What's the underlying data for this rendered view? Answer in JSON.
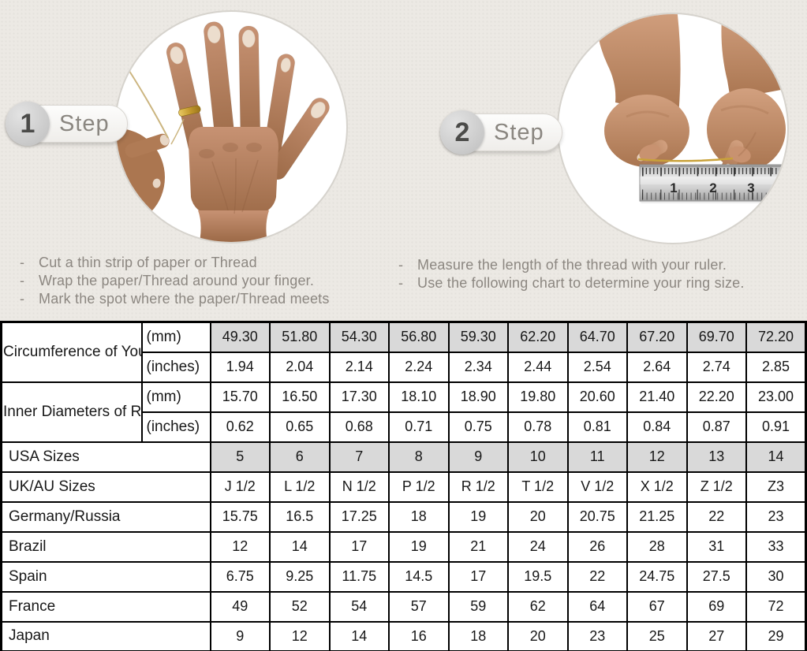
{
  "colors": {
    "background": "#ece9e4",
    "highlight_cell": "#d9d9d9",
    "gold_thread": "#c9a23a",
    "table_border": "#000000",
    "instruction_text": "#8c8781"
  },
  "steps": [
    {
      "number": "1",
      "label": "Step",
      "photo": "hand-with-ring-and-thread",
      "instructions": [
        "Cut a thin strip of paper or Thread",
        "Wrap the paper/Thread around your finger.",
        "Mark the spot where the paper/Thread meets"
      ]
    },
    {
      "number": "2",
      "label": "Step",
      "photo": "hands-measuring-thread-with-ruler",
      "ruler_numbers": [
        "1",
        "2",
        "3"
      ],
      "instructions": [
        "Measure the length of the thread with your ruler.",
        "Use the following chart to determine your ring size."
      ]
    }
  ],
  "table": {
    "row_groups": [
      {
        "label": "Circumference of Your Finger",
        "rows": [
          {
            "unit": "(mm)",
            "highlight": true,
            "values": [
              "49.30",
              "51.80",
              "54.30",
              "56.80",
              "59.30",
              "62.20",
              "64.70",
              "67.20",
              "69.70",
              "72.20"
            ]
          },
          {
            "unit": "(inches)",
            "highlight": false,
            "values": [
              "1.94",
              "2.04",
              "2.14",
              "2.24",
              "2.34",
              "2.44",
              "2.54",
              "2.64",
              "2.74",
              "2.85"
            ]
          }
        ]
      },
      {
        "label": "Inner Diameters of Rings",
        "rows": [
          {
            "unit": "(mm)",
            "highlight": false,
            "values": [
              "15.70",
              "16.50",
              "17.30",
              "18.10",
              "18.90",
              "19.80",
              "20.60",
              "21.40",
              "22.20",
              "23.00"
            ]
          },
          {
            "unit": "(inches)",
            "highlight": false,
            "values": [
              "0.62",
              "0.65",
              "0.68",
              "0.71",
              "0.75",
              "0.78",
              "0.81",
              "0.84",
              "0.87",
              "0.91"
            ]
          }
        ]
      }
    ],
    "size_rows": [
      {
        "label": "USA Sizes",
        "highlight": true,
        "values": [
          "5",
          "6",
          "7",
          "8",
          "9",
          "10",
          "11",
          "12",
          "13",
          "14"
        ]
      },
      {
        "label": "UK/AU Sizes",
        "highlight": false,
        "values": [
          "J 1/2",
          "L 1/2",
          "N 1/2",
          "P 1/2",
          "R 1/2",
          "T 1/2",
          "V 1/2",
          "X 1/2",
          "Z 1/2",
          "Z3"
        ]
      },
      {
        "label": "Germany/Russia",
        "highlight": false,
        "values": [
          "15.75",
          "16.5",
          "17.25",
          "18",
          "19",
          "20",
          "20.75",
          "21.25",
          "22",
          "23"
        ]
      },
      {
        "label": "Brazil",
        "highlight": false,
        "values": [
          "12",
          "14",
          "17",
          "19",
          "21",
          "24",
          "26",
          "28",
          "31",
          "33"
        ]
      },
      {
        "label": "Spain",
        "highlight": false,
        "values": [
          "6.75",
          "9.25",
          "11.75",
          "14.5",
          "17",
          "19.5",
          "22",
          "24.75",
          "27.5",
          "30"
        ]
      },
      {
        "label": "France",
        "highlight": false,
        "values": [
          "49",
          "52",
          "54",
          "57",
          "59",
          "62",
          "64",
          "67",
          "69",
          "72"
        ]
      },
      {
        "label": "Japan",
        "highlight": false,
        "values": [
          "9",
          "12",
          "14",
          "16",
          "18",
          "20",
          "23",
          "25",
          "27",
          "29"
        ]
      }
    ]
  },
  "chart_data": {
    "type": "table",
    "columns": [
      "size-1",
      "size-2",
      "size-3",
      "size-4",
      "size-5",
      "size-6",
      "size-7",
      "size-8",
      "size-9",
      "size-10"
    ],
    "rows": [
      {
        "label": "Circumference of Your Finger (mm)",
        "values": [
          49.3,
          51.8,
          54.3,
          56.8,
          59.3,
          62.2,
          64.7,
          67.2,
          69.7,
          72.2
        ]
      },
      {
        "label": "Circumference of Your Finger (inches)",
        "values": [
          1.94,
          2.04,
          2.14,
          2.24,
          2.34,
          2.44,
          2.54,
          2.64,
          2.74,
          2.85
        ]
      },
      {
        "label": "Inner Diameters of Rings (mm)",
        "values": [
          15.7,
          16.5,
          17.3,
          18.1,
          18.9,
          19.8,
          20.6,
          21.4,
          22.2,
          23.0
        ]
      },
      {
        "label": "Inner Diameters of Rings (inches)",
        "values": [
          0.62,
          0.65,
          0.68,
          0.71,
          0.75,
          0.78,
          0.81,
          0.84,
          0.87,
          0.91
        ]
      },
      {
        "label": "USA Sizes",
        "values": [
          5,
          6,
          7,
          8,
          9,
          10,
          11,
          12,
          13,
          14
        ]
      },
      {
        "label": "UK/AU Sizes",
        "values": [
          "J 1/2",
          "L 1/2",
          "N 1/2",
          "P 1/2",
          "R 1/2",
          "T 1/2",
          "V 1/2",
          "X 1/2",
          "Z 1/2",
          "Z3"
        ]
      },
      {
        "label": "Germany/Russia",
        "values": [
          15.75,
          16.5,
          17.25,
          18,
          19,
          20,
          20.75,
          21.25,
          22,
          23
        ]
      },
      {
        "label": "Brazil",
        "values": [
          12,
          14,
          17,
          19,
          21,
          24,
          26,
          28,
          31,
          33
        ]
      },
      {
        "label": "Spain",
        "values": [
          6.75,
          9.25,
          11.75,
          14.5,
          17,
          19.5,
          22,
          24.75,
          27.5,
          30
        ]
      },
      {
        "label": "France",
        "values": [
          49,
          52,
          54,
          57,
          59,
          62,
          64,
          67,
          69,
          72
        ]
      },
      {
        "label": "Japan",
        "values": [
          9,
          12,
          14,
          16,
          18,
          20,
          23,
          25,
          27,
          29
        ]
      }
    ]
  }
}
